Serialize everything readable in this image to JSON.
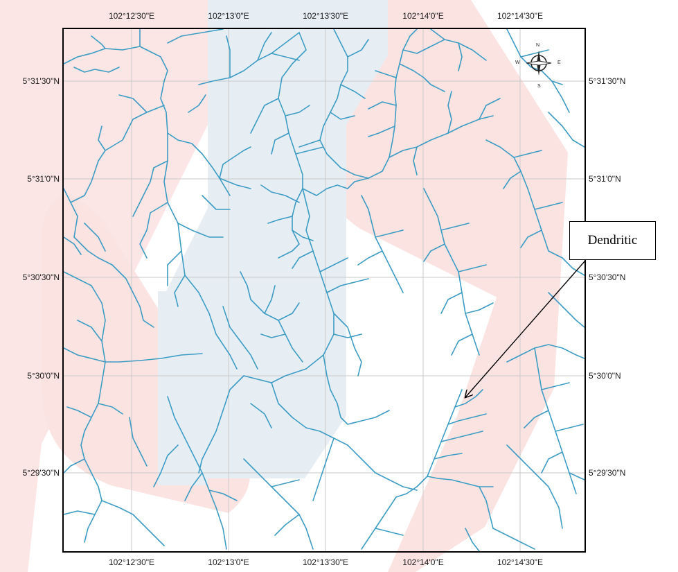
{
  "map": {
    "longitude_labels": [
      "102°12'30\"E",
      "102°13'0\"E",
      "102°13'30\"E",
      "102°14'0\"E",
      "102°14'30\"E"
    ],
    "latitude_labels": [
      "5°31'30\"N",
      "5°31'0\"N",
      "5°30'30\"N",
      "5°30'0\"N",
      "5°29'30\"N"
    ],
    "annotation": "Dendritic",
    "compass": {
      "n": "N",
      "s": "S",
      "e": "E",
      "w": "W"
    },
    "colors": {
      "stream": "#3d9cc4",
      "gridline": "#c9c9c9",
      "frame": "#000000",
      "watermark_red": "#fbe3e2",
      "watermark_blue": "#e6eef4"
    }
  }
}
